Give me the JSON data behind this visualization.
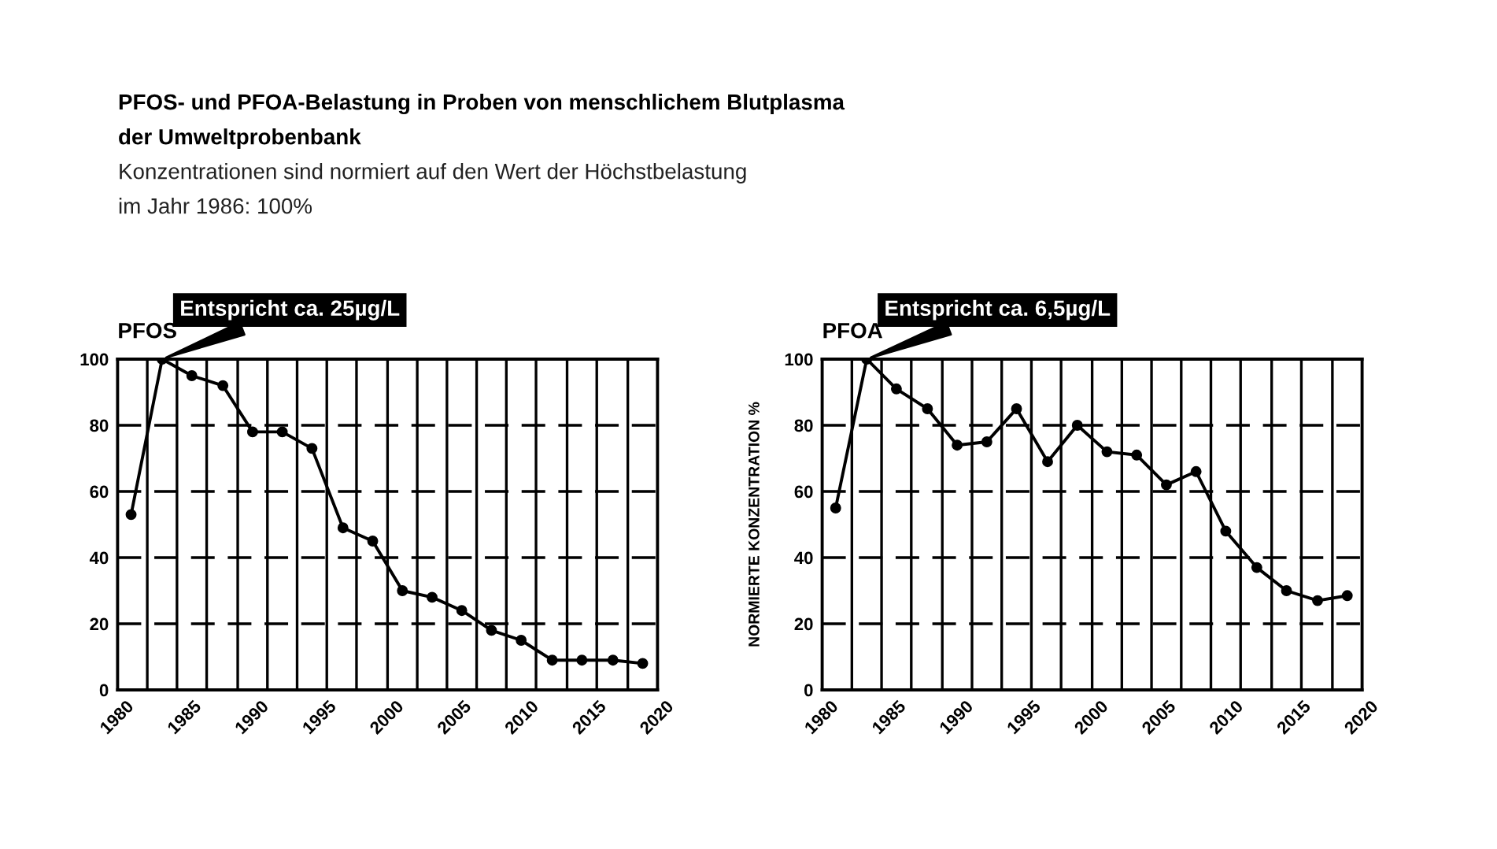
{
  "chart_data": [
    {
      "type": "other",
      "title": "PFOS- und PFOA-Belastung in Proben von menschlichem Blutplasma\nder Umweltprobenbank",
      "subtitle": "Konzentrationen sind normiert auf den Wert der Höchstbelastung\nim Jahr 1986: 100%"
    },
    {
      "type": "line",
      "title": "PFOS",
      "x": [
        1981.0,
        1983.3,
        1985.5,
        1987.8,
        1990.0,
        1992.2,
        1994.4,
        1996.7,
        1998.9,
        2001.1,
        2003.3,
        2005.5,
        2007.7,
        2009.9,
        2012.2,
        2014.4,
        2016.7,
        2018.9
      ],
      "series": [
        {
          "color": "#000000",
          "values": [
            53,
            100,
            95,
            92,
            78,
            78,
            73,
            49,
            45,
            30,
            28,
            24,
            18,
            15,
            9,
            9,
            9,
            8
          ]
        }
      ],
      "marker": "circle",
      "line_style": "solid",
      "grid": true,
      "xlim": [
        1980,
        2020
      ],
      "ylim": [
        0,
        100
      ],
      "xticks": [
        1980,
        1985,
        1990,
        1995,
        2000,
        2005,
        2010,
        2015,
        2020,
        {
          "value": 1982.2,
          "label": null
        },
        {
          "value": 1984.4,
          "label": null
        },
        {
          "value": 1986.6,
          "label": null
        },
        {
          "value": 1988.9,
          "label": null
        },
        {
          "value": 1991.1,
          "label": null
        },
        {
          "value": 1993.3,
          "label": null
        },
        {
          "value": 1995.5,
          "label": null
        },
        {
          "value": 1997.7,
          "label": null
        },
        {
          "value": 2000.0,
          "label": null
        },
        {
          "value": 2002.2,
          "label": null
        },
        {
          "value": 2004.4,
          "label": null
        },
        {
          "value": 2006.6,
          "label": null
        },
        {
          "value": 2008.8,
          "label": null
        },
        {
          "value": 2011.0,
          "label": null
        },
        {
          "value": 2013.3,
          "label": null
        },
        {
          "value": 2015.5,
          "label": null
        },
        {
          "value": 2017.8,
          "label": null
        }
      ],
      "yticks": [
        0,
        20,
        40,
        60,
        80,
        100
      ],
      "annotations": [
        {
          "text": "Entspricht ca. 25µg/L",
          "x": 1983.3,
          "y": 100
        }
      ]
    },
    {
      "type": "line",
      "title": "PFOA",
      "ylabel": "NORMIERTE KONZENTRATION %",
      "x": [
        1981.0,
        1983.3,
        1985.5,
        1987.8,
        1990.0,
        1992.2,
        1994.4,
        1996.7,
        1998.9,
        2001.1,
        2003.3,
        2005.5,
        2007.7,
        2009.9,
        2012.2,
        2014.4,
        2016.7,
        2018.9
      ],
      "series": [
        {
          "color": "#000000",
          "values": [
            55,
            100,
            91,
            85,
            74,
            75,
            85,
            69,
            80,
            72,
            71,
            62,
            66,
            48,
            37,
            30,
            27,
            28.5
          ]
        }
      ],
      "marker": "circle",
      "line_style": "solid",
      "grid": true,
      "xlim": [
        1980,
        2020
      ],
      "ylim": [
        0,
        100
      ],
      "xticks": [
        1980,
        1985,
        1990,
        1995,
        2000,
        2005,
        2010,
        2015,
        2020,
        {
          "value": 1982.2,
          "label": null
        },
        {
          "value": 1984.4,
          "label": null
        },
        {
          "value": 1986.6,
          "label": null
        },
        {
          "value": 1988.9,
          "label": null
        },
        {
          "value": 1991.1,
          "label": null
        },
        {
          "value": 1993.3,
          "label": null
        },
        {
          "value": 1995.5,
          "label": null
        },
        {
          "value": 1997.7,
          "label": null
        },
        {
          "value": 2000.0,
          "label": null
        },
        {
          "value": 2002.2,
          "label": null
        },
        {
          "value": 2004.4,
          "label": null
        },
        {
          "value": 2006.6,
          "label": null
        },
        {
          "value": 2008.8,
          "label": null
        },
        {
          "value": 2011.0,
          "label": null
        },
        {
          "value": 2013.3,
          "label": null
        },
        {
          "value": 2015.5,
          "label": null
        },
        {
          "value": 2017.8,
          "label": null
        }
      ],
      "yticks": [
        0,
        20,
        40,
        60,
        80,
        100
      ],
      "annotations": [
        {
          "text": "Entspricht ca. 6,5µg/L",
          "x": 1983.3,
          "y": 100
        }
      ]
    }
  ]
}
